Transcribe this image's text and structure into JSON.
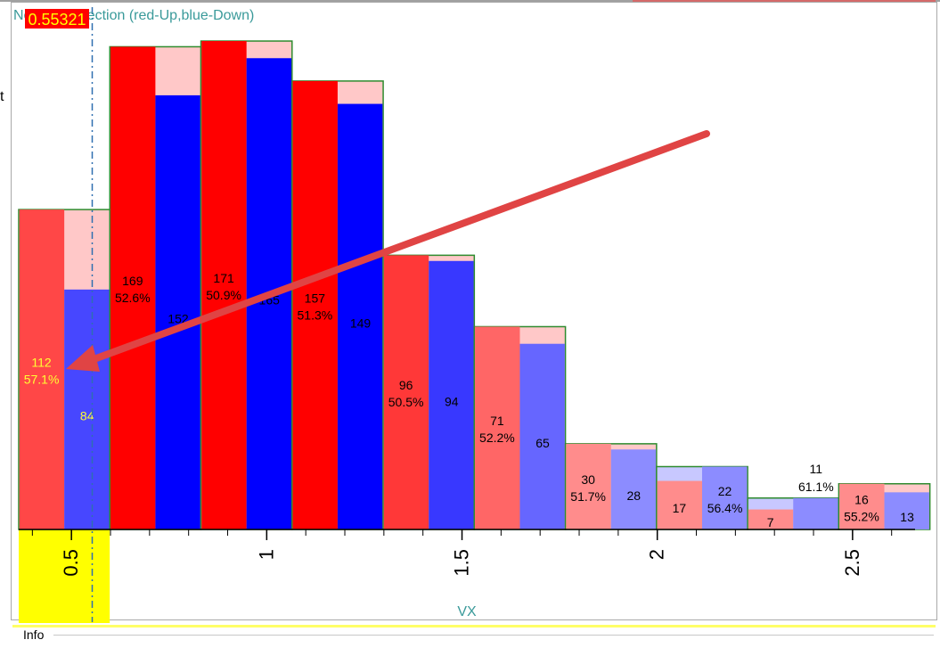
{
  "window": {
    "info_label": "Info",
    "left_fragment": "t"
  },
  "chart_data": {
    "type": "bar",
    "title": "Next bar direction (red-Up,blue-Down)",
    "xlabel": "VX",
    "ylabel": "",
    "cursor_value": "0.55321",
    "x_ticks": [
      {
        "value": 0.5,
        "label": "0.5"
      },
      {
        "value": 1,
        "label": "1"
      },
      {
        "value": 1.5,
        "label": "1.5"
      },
      {
        "value": 2,
        "label": "2"
      },
      {
        "value": 2.5,
        "label": "2.5"
      }
    ],
    "xlim": [
      0.365,
      2.66
    ],
    "ylim": [
      0,
      181
    ],
    "bin_width": 0.2333,
    "first_bin_start": 0.365,
    "highlight_range": [
      0.365,
      0.598
    ],
    "cursor_x": 0.55321,
    "bins": [
      {
        "up": 112,
        "down": 84,
        "pct": "57.1%",
        "total": 112,
        "dominant": "up",
        "color_level": 0.72
      },
      {
        "up": 169,
        "down": 152,
        "pct": "52.6%",
        "total": 169,
        "dominant": "up",
        "color_level": 1.0
      },
      {
        "up": 171,
        "down": 165,
        "pct": "50.9%",
        "total": 171,
        "dominant": "up",
        "color_level": 1.0
      },
      {
        "up": 157,
        "down": 149,
        "pct": "51.3%",
        "total": 157,
        "dominant": "up",
        "color_level": 1.0
      },
      {
        "up": 96,
        "down": 94,
        "pct": "50.5%",
        "total": 96,
        "dominant": "up",
        "color_level": 0.78
      },
      {
        "up": 71,
        "down": 65,
        "pct": "52.2%",
        "total": 71,
        "dominant": "up",
        "color_level": 0.6
      },
      {
        "up": 30,
        "down": 28,
        "pct": "51.7%",
        "total": 30,
        "dominant": "up",
        "color_level": 0.45
      },
      {
        "up": 17,
        "down": 22,
        "pct": "56.4%",
        "total": 22,
        "dominant": "down",
        "color_level": 0.45
      },
      {
        "up": 7,
        "down": 11,
        "pct": "61.1%",
        "total": 11,
        "dominant": "down",
        "color_level": 0.45
      },
      {
        "up": 16,
        "down": 13,
        "pct": "55.2%",
        "total": 16,
        "dominant": "up",
        "color_level": 0.45
      }
    ],
    "colors": {
      "up": "#ff0000",
      "down": "#0000ff",
      "up_light": "#ffc8c8",
      "down_light": "#c8c8ff",
      "outline": "#2e8b2e",
      "highlight": "#ffff00",
      "cursor": "#2f6fb0",
      "arrow": "#e04444",
      "title": "#3a9a9a",
      "cursor_box": "#ff0000",
      "cursor_text": "#ffff00"
    }
  }
}
